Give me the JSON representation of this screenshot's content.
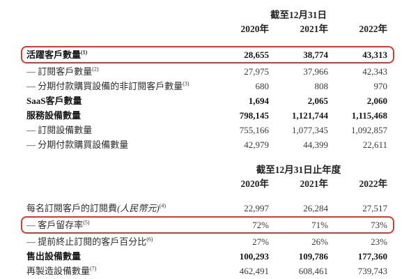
{
  "highlight_color": "#d83a2e",
  "table1": {
    "period_header": "截至12月31日",
    "col_headers": [
      "2020年",
      "2021年",
      "2022年"
    ],
    "rows": [
      {
        "label": "活躍客戶數量",
        "sup": "(1)",
        "values": [
          "28,655",
          "38,774",
          "43,313"
        ],
        "bold": true,
        "highlighted": true
      },
      {
        "label": "— 訂閱客戶數量",
        "sup": "(2)",
        "values": [
          "27,975",
          "37,966",
          "42,343"
        ]
      },
      {
        "label": "— 分期付款購買設備的非訂閱客戶數量",
        "sup": "(3)",
        "values": [
          "680",
          "808",
          "970"
        ]
      },
      {
        "label": "SaaS客戶數量",
        "values": [
          "1,694",
          "2,065",
          "2,060"
        ],
        "bold": true
      },
      {
        "label": "服務設備數量",
        "values": [
          "798,145",
          "1,121,744",
          "1,115,468"
        ],
        "bold": true
      },
      {
        "label": "— 訂閱設備數量",
        "values": [
          "755,166",
          "1,077,345",
          "1,092,857"
        ]
      },
      {
        "label": "— 分期付款購買設備數量",
        "values": [
          "42,979",
          "44,399",
          "22,611"
        ]
      }
    ]
  },
  "table2": {
    "period_header": "截至12月31日止年度",
    "col_headers": [
      "2020年",
      "2021年",
      "2022年"
    ],
    "rows": [
      {
        "label": "每名訂閱客戶的訂閱費",
        "label_italic": "(人民幣元)",
        "sup": "(4)",
        "values": [
          "22,997",
          "26,284",
          "27,517"
        ]
      },
      {
        "label": "— 客戶留存率",
        "sup": "(5)",
        "values": [
          "72%",
          "71%",
          "73%"
        ],
        "highlighted": true
      },
      {
        "label": "— 提前終止訂閱的客戶百分比",
        "sup": "(6)",
        "values": [
          "27%",
          "26%",
          "23%"
        ]
      },
      {
        "label": "售出設備數量",
        "values": [
          "100,293",
          "109,786",
          "177,360"
        ],
        "bold": true
      },
      {
        "label": "再製造設備數量",
        "sup": "(7)",
        "values": [
          "462,491",
          "608,461",
          "739,743"
        ]
      }
    ]
  }
}
